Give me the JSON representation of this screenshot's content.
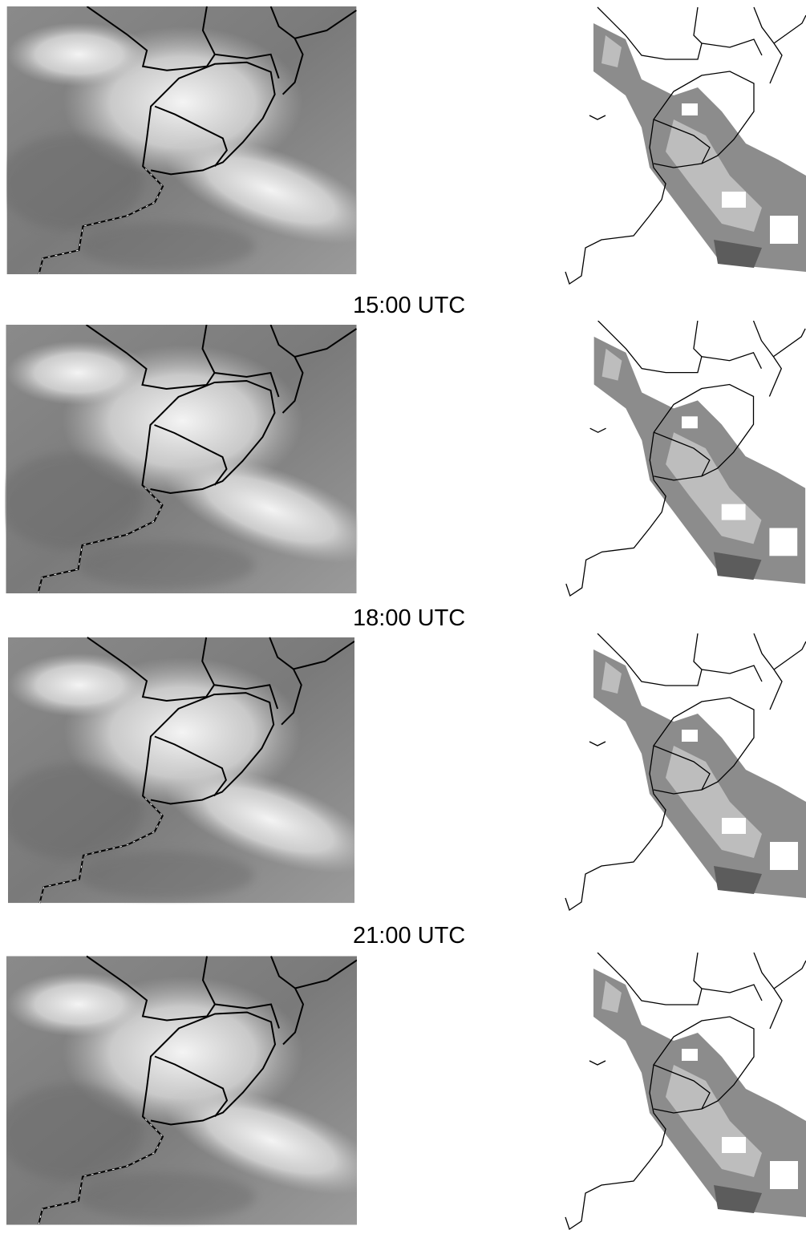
{
  "time_labels": [
    "15:00 UTC",
    "18:00 UTC",
    "21:00 UTC"
  ]
}
